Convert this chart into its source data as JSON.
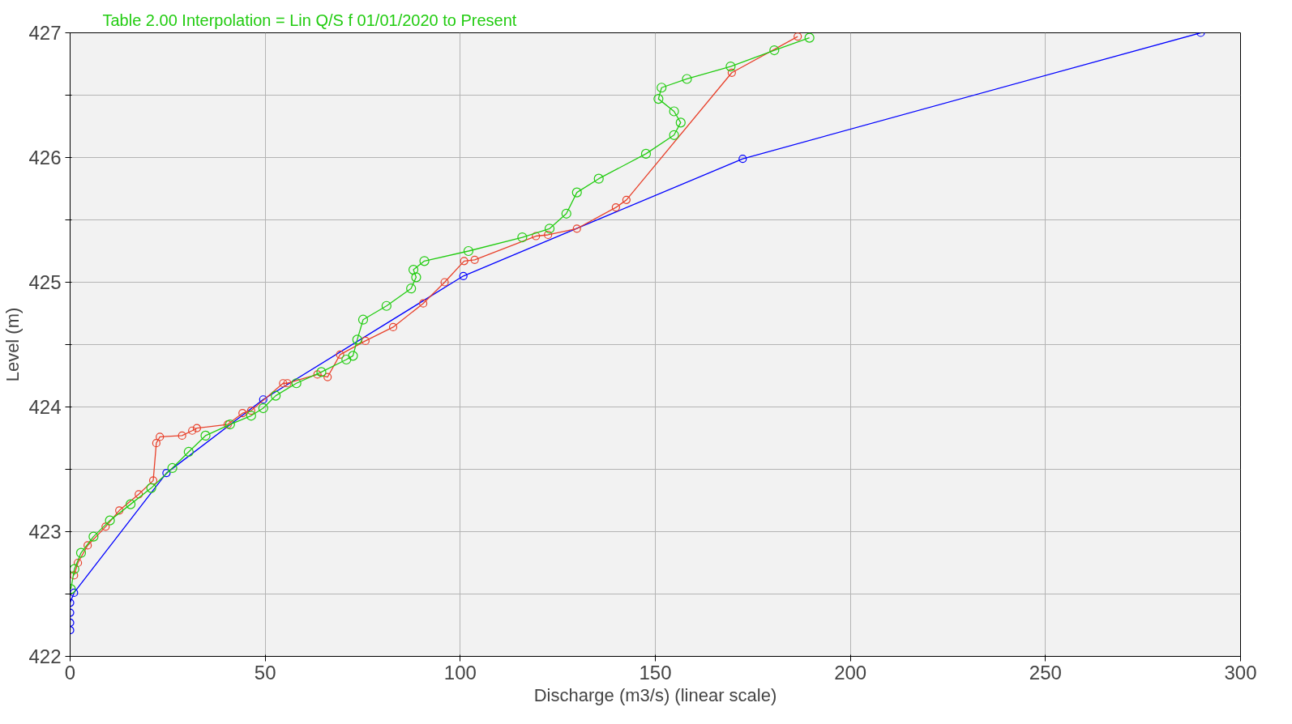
{
  "chart_data": {
    "type": "line",
    "title": "Table 2.00 Interpolation = Lin Q/S f 01/01/2020 to Present",
    "xlabel": "Discharge (m3/s) (linear scale)",
    "ylabel": "Level (m)",
    "xlim": [
      0,
      300
    ],
    "xticks": [
      0,
      50,
      100,
      150,
      200,
      250,
      300
    ],
    "ylim": [
      422,
      427
    ],
    "yticks": [
      422,
      {
        "value": 422.5,
        "label": null
      },
      423,
      {
        "value": 423.5,
        "label": null
      },
      424,
      {
        "value": 424.5,
        "label": null
      },
      425,
      {
        "value": 425.5,
        "label": null
      },
      426,
      {
        "value": 426.5,
        "label": null
      },
      427
    ],
    "grid": true,
    "marker": "circle",
    "line_style": "solid",
    "series": [
      {
        "color": "#0000ff",
        "x": [
          0,
          0,
          0,
          0,
          1,
          24.7,
          49.5,
          100.8,
          172.4,
          289.8
        ],
        "values": [
          422.21,
          422.27,
          422.35,
          422.43,
          422.51,
          423.47,
          424.06,
          425.05,
          425.99,
          427.0
        ]
      },
      {
        "color": "#e8402a",
        "x": [
          1,
          2,
          4.5,
          9.1,
          12.6,
          17.6,
          21.3,
          22.1,
          23.0,
          28.7,
          31.3,
          32.5,
          40.4,
          44.2,
          46.4,
          54.6,
          55.7,
          63.4,
          66,
          69.2,
          75.7,
          82.8,
          90.5,
          96.0,
          101.0,
          103.7,
          119.4,
          122.5,
          129.9,
          139.9,
          142.6,
          169.6,
          186.5
        ],
        "values": [
          422.65,
          422.75,
          422.89,
          423.04,
          423.17,
          423.3,
          423.41,
          423.71,
          423.76,
          423.77,
          423.81,
          423.83,
          423.86,
          423.95,
          423.97,
          424.19,
          424.19,
          424.26,
          424.24,
          424.42,
          424.53,
          424.64,
          424.83,
          425.0,
          425.17,
          425.18,
          425.37,
          425.38,
          425.43,
          425.6,
          425.66,
          426.68,
          426.97
        ]
      },
      {
        "color": "#22cc11",
        "x": [
          0.2,
          1.1,
          2.8,
          6.0,
          10.2,
          15.5,
          20.8,
          26.2,
          30.4,
          34.7,
          41.0,
          46.4,
          49.5,
          52.7,
          58.0,
          64.4,
          70.8,
          72.5,
          73.6,
          75.1,
          81.1,
          87.4,
          88.7,
          88.0,
          90.8,
          102.1,
          115.9,
          122.9,
          127.2,
          129.9,
          135.5,
          147.6,
          154.8,
          156.5,
          154.8,
          150.8,
          151.6,
          158.1,
          169.3,
          180.5,
          189.5
        ],
        "values": [
          422.54,
          422.7,
          422.83,
          422.96,
          423.09,
          423.22,
          423.35,
          423.51,
          423.64,
          423.77,
          423.86,
          423.93,
          423.99,
          424.09,
          424.19,
          424.28,
          424.38,
          424.41,
          424.54,
          424.7,
          424.81,
          424.95,
          425.04,
          425.1,
          425.17,
          425.25,
          425.36,
          425.43,
          425.55,
          425.72,
          425.83,
          426.03,
          426.18,
          426.28,
          426.37,
          426.47,
          426.56,
          426.63,
          426.73,
          426.86,
          426.96
        ]
      }
    ]
  }
}
